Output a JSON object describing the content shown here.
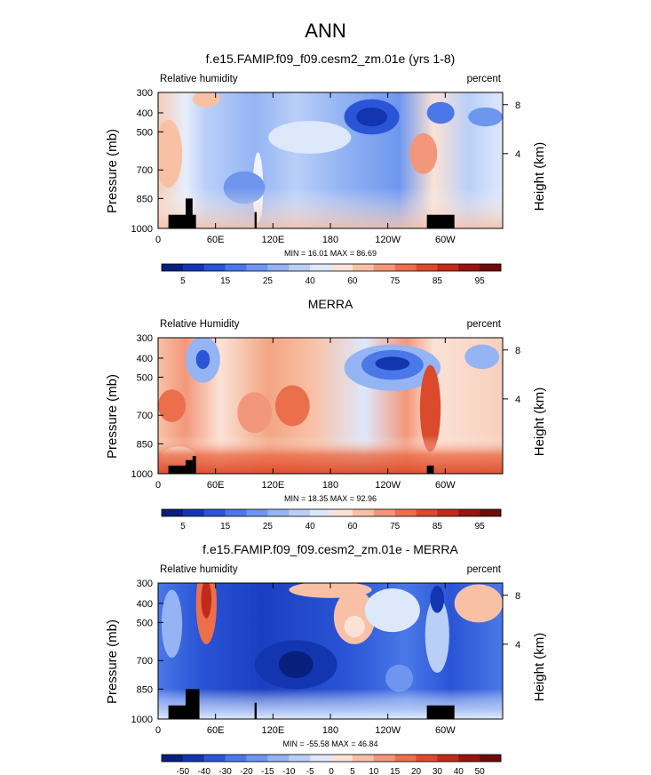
{
  "page_title": "ANN",
  "chart_data": [
    {
      "type": "heatmap",
      "title": "f.e15.FAMIP.f09_f09.cesm2_zm.01e (yrs 1-8)",
      "left_label": "Relative humidity",
      "right_label": "percent",
      "ylabel": "Pressure (mb)",
      "y2label": "Height (km)",
      "x_ticks": [
        "0",
        "60E",
        "120E",
        "180",
        "120W",
        "60W"
      ],
      "y_ticks": [
        "300",
        "400",
        "500",
        "700",
        "850",
        "1000"
      ],
      "y2_ticks": [
        "8",
        "4"
      ],
      "stats": "MIN = 16.01   MAX = 86.69",
      "min": 16.01,
      "max": 86.69,
      "colorbar_levels": [
        "5",
        "15",
        "25",
        "40",
        "60",
        "75",
        "85",
        "95"
      ]
    },
    {
      "type": "heatmap",
      "title": "MERRA",
      "left_label": "Relative Humidity",
      "right_label": "percent",
      "ylabel": "Pressure (mb)",
      "y2label": "Height (km)",
      "x_ticks": [
        "0",
        "60E",
        "120E",
        "180",
        "120W",
        "60W"
      ],
      "y_ticks": [
        "300",
        "400",
        "500",
        "700",
        "850",
        "1000"
      ],
      "y2_ticks": [
        "8",
        "4"
      ],
      "stats": "MIN = 18.35   MAX = 92.96",
      "min": 18.35,
      "max": 92.96,
      "colorbar_levels": [
        "5",
        "15",
        "25",
        "40",
        "60",
        "75",
        "85",
        "95"
      ]
    },
    {
      "type": "heatmap",
      "title": "f.e15.FAMIP.f09_f09.cesm2_zm.01e - MERRA",
      "left_label": "Relative humidity",
      "right_label": "percent",
      "ylabel": "Pressure (mb)",
      "y2label": "Height (km)",
      "x_ticks": [
        "0",
        "60E",
        "120E",
        "180",
        "120W",
        "60W"
      ],
      "y_ticks": [
        "300",
        "400",
        "500",
        "700",
        "850",
        "1000"
      ],
      "y2_ticks": [
        "8",
        "4"
      ],
      "stats": "MIN = -55.58   MAX = 46.84",
      "min": -55.58,
      "max": 46.84,
      "colorbar_levels": [
        "-50",
        "-40",
        "-30",
        "-20",
        "-15",
        "-10",
        "-5",
        "0",
        "5",
        "10",
        "15",
        "20",
        "30",
        "40",
        "50"
      ]
    }
  ],
  "colors": {
    "ramp_abs": [
      "#08207d",
      "#1336b0",
      "#2a55d6",
      "#4a78e8",
      "#6e96ef",
      "#94b4f4",
      "#b9cff8",
      "#dde8fb",
      "#fbe2d6",
      "#f8c1a6",
      "#f3977a",
      "#ec6f4c",
      "#dc4a2c",
      "#bf2b1b",
      "#951510",
      "#6e0b0b"
    ],
    "ramp_diff": [
      "#08207d",
      "#1336b0",
      "#2a55d6",
      "#4a78e8",
      "#6e96ef",
      "#94b4f4",
      "#b9cff8",
      "#dde8fb",
      "#fbe2d6",
      "#f8c1a6",
      "#f3977a",
      "#ec6f4c",
      "#dc4a2c",
      "#bf2b1b",
      "#951510",
      "#6e0b0b"
    ],
    "topography": "#000000"
  }
}
